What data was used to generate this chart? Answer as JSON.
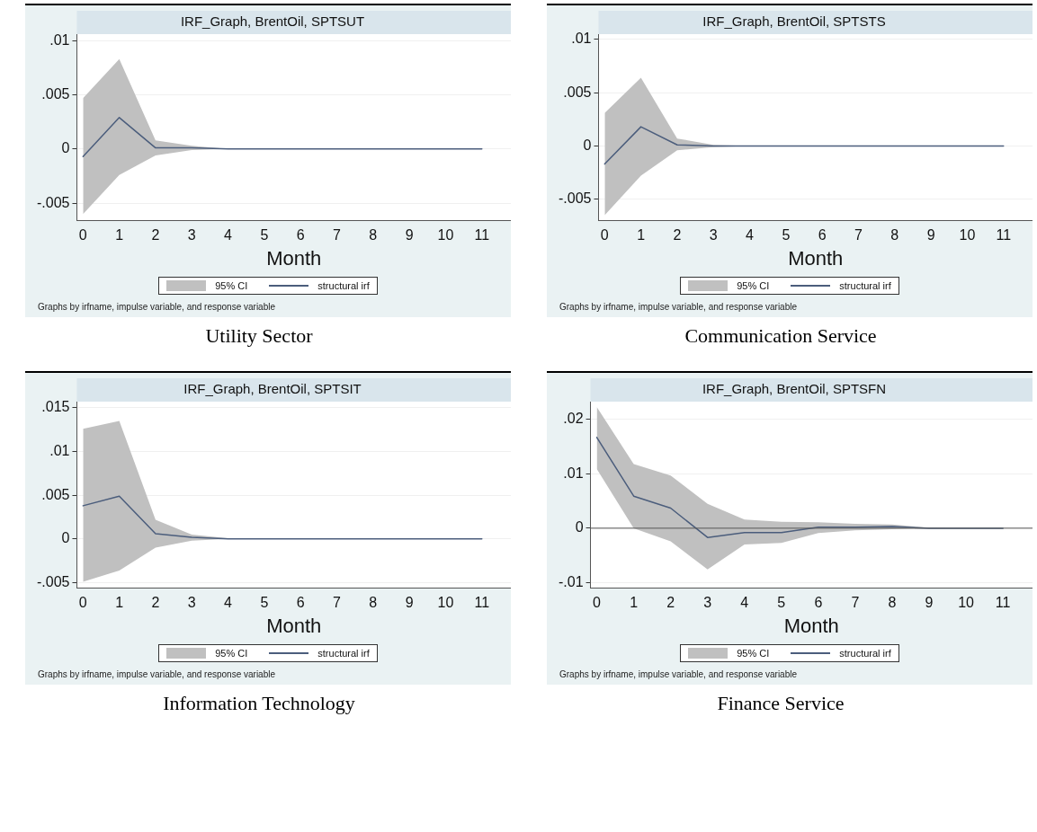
{
  "chart_data": [
    {
      "type": "line",
      "title": "IRF_Graph, BrentOil, SPTSUT",
      "xlabel": "Month",
      "x": [
        0,
        1,
        2,
        3,
        4,
        5,
        6,
        7,
        8,
        9,
        10,
        11
      ],
      "xlim": [
        -0.17,
        11.8
      ],
      "xticks": [
        0,
        1,
        2,
        3,
        4,
        5,
        6,
        7,
        8,
        9,
        10,
        11
      ],
      "ylim": [
        -0.0066,
        0.0106
      ],
      "yticks": [
        {
          "value": -0.005,
          "label": "-.005"
        },
        {
          "value": 0,
          "label": "0"
        },
        {
          "value": 0.005,
          "label": ".005"
        },
        {
          "value": 0.01,
          "label": ".01"
        }
      ],
      "grid": "y",
      "legend": "bottom",
      "series": [
        {
          "name": "structural irf",
          "color": "#4b5d7c",
          "values": [
            -0.0007,
            0.0029,
            0.0001,
            0.0001,
            0,
            0,
            0,
            0,
            0,
            0,
            0,
            0
          ],
          "lower": [
            -0.006,
            -0.0024,
            -0.0006,
            -0.0001,
            0,
            0,
            0,
            0,
            0,
            0,
            0,
            0
          ],
          "upper": [
            0.0047,
            0.0083,
            0.0008,
            0.0003,
            0,
            0,
            0,
            0,
            0,
            0,
            0,
            0
          ]
        }
      ],
      "annotations": [
        "95% CI",
        "Graphs by irfname, impulse variable, and response variable",
        "Utility Sector"
      ]
    },
    {
      "type": "line",
      "title": "IRF_Graph, BrentOil, SPTSTS",
      "xlabel": "Month",
      "x": [
        0,
        1,
        2,
        3,
        4,
        5,
        6,
        7,
        8,
        9,
        10,
        11
      ],
      "xlim": [
        -0.17,
        11.8
      ],
      "xticks": [
        0,
        1,
        2,
        3,
        4,
        5,
        6,
        7,
        8,
        9,
        10,
        11
      ],
      "ylim": [
        -0.007,
        0.0105
      ],
      "yticks": [
        {
          "value": -0.005,
          "label": "-.005"
        },
        {
          "value": 0,
          "label": "0"
        },
        {
          "value": 0.005,
          "label": ".005"
        },
        {
          "value": 0.01,
          "label": ".01"
        }
      ],
      "grid": "y",
      "legend": "bottom",
      "series": [
        {
          "name": "structural irf",
          "color": "#4b5d7c",
          "values": [
            -0.0017,
            0.0018,
            0.0001,
            0,
            0,
            0,
            0,
            0,
            0,
            0,
            0,
            0
          ],
          "lower": [
            -0.0065,
            -0.0028,
            -0.0004,
            -0.0001,
            0,
            0,
            0,
            0,
            0,
            0,
            0,
            0
          ],
          "upper": [
            0.0031,
            0.0064,
            0.0007,
            0.0001,
            0,
            0,
            0,
            0,
            0,
            0,
            0,
            0
          ]
        }
      ],
      "annotations": [
        "95% CI",
        "Graphs by irfname, impulse variable, and response variable",
        "Communication Service"
      ]
    },
    {
      "type": "line",
      "title": "IRF_Graph, BrentOil, SPTSIT",
      "xlabel": "Month",
      "x": [
        0,
        1,
        2,
        3,
        4,
        5,
        6,
        7,
        8,
        9,
        10,
        11
      ],
      "xlim": [
        -0.17,
        11.8
      ],
      "xticks": [
        0,
        1,
        2,
        3,
        4,
        5,
        6,
        7,
        8,
        9,
        10,
        11
      ],
      "ylim": [
        -0.0056,
        0.0157
      ],
      "yticks": [
        {
          "value": -0.005,
          "label": "-.005"
        },
        {
          "value": 0,
          "label": "0"
        },
        {
          "value": 0.005,
          "label": ".005"
        },
        {
          "value": 0.01,
          "label": ".01"
        },
        {
          "value": 0.015,
          "label": ".015"
        }
      ],
      "grid": "y",
      "legend": "bottom",
      "series": [
        {
          "name": "structural irf",
          "color": "#4b5d7c",
          "values": [
            0.0038,
            0.0049,
            0.0006,
            0.0002,
            0,
            0,
            0,
            0,
            0,
            0,
            0,
            0
          ],
          "lower": [
            -0.0049,
            -0.0036,
            -0.001,
            -0.0002,
            0,
            0,
            0,
            0,
            0,
            0,
            0,
            0
          ],
          "upper": [
            0.0126,
            0.0135,
            0.0022,
            0.0005,
            0.0001,
            0,
            0,
            0,
            0,
            0,
            0,
            0
          ]
        }
      ],
      "annotations": [
        "95% CI",
        "Graphs by irfname, impulse variable, and response variable",
        "Information Technology"
      ]
    },
    {
      "type": "line",
      "title": "IRF_Graph, BrentOil, SPTSFN",
      "xlabel": "Month",
      "x": [
        0,
        1,
        2,
        3,
        4,
        5,
        6,
        7,
        8,
        9,
        10,
        11
      ],
      "xlim": [
        -0.17,
        11.8
      ],
      "xticks": [
        0,
        1,
        2,
        3,
        4,
        5,
        6,
        7,
        8,
        9,
        10,
        11
      ],
      "ylim": [
        -0.011,
        0.0233
      ],
      "yticks": [
        {
          "value": -0.01,
          "label": "-.01"
        },
        {
          "value": 0,
          "label": "0"
        },
        {
          "value": 0.01,
          "label": ".01"
        },
        {
          "value": 0.02,
          "label": ".02"
        }
      ],
      "grid": "y",
      "legend": "bottom",
      "ref_lines": [
        {
          "axis": "y",
          "value": 0,
          "color": "#555555"
        }
      ],
      "series": [
        {
          "name": "structural irf",
          "color": "#4b5d7c",
          "values": [
            0.0167,
            0.0059,
            0.0037,
            -0.0017,
            -0.0008,
            -0.0008,
            0.0002,
            0.0002,
            0.0003,
            0,
            0,
            0
          ],
          "lower": [
            0.0109,
            0,
            -0.0024,
            -0.0076,
            -0.003,
            -0.0027,
            -0.0009,
            -0.0004,
            -0.0002,
            0,
            0,
            0
          ],
          "upper": [
            0.0223,
            0.0118,
            0.0097,
            0.0045,
            0.0016,
            0.0012,
            0.0011,
            0.0008,
            0.0007,
            0.0001,
            0,
            0
          ]
        }
      ],
      "annotations": [
        "95% CI",
        "Graphs by irfname, impulse variable, and response variable",
        "Finance Service"
      ]
    }
  ]
}
